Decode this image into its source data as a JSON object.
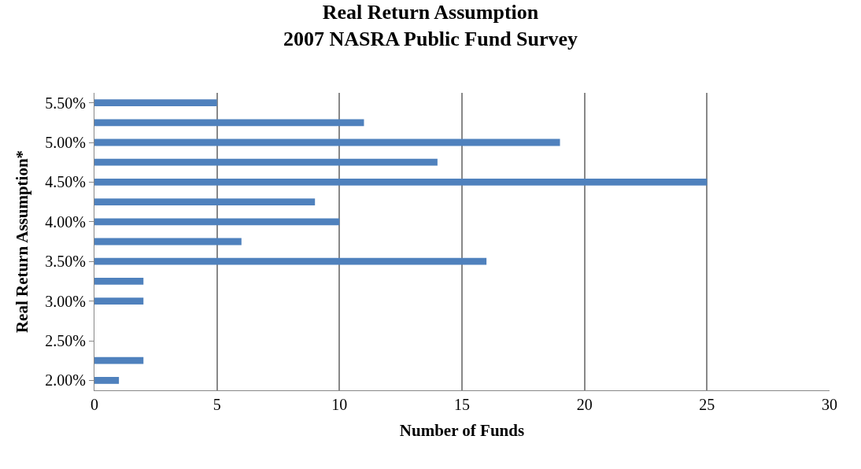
{
  "chart_data": {
    "type": "bar",
    "orientation": "horizontal",
    "title": "Real Return Assumption\n2007 NASRA Public Fund Survey",
    "xlabel": "Number of Funds",
    "ylabel": "Real Return Assumption*",
    "categories": [
      "5.50%",
      null,
      "5.00%",
      null,
      "4.50%",
      null,
      "4.00%",
      null,
      "3.50%",
      null,
      "3.00%",
      null,
      "2.50%",
      null,
      "2.00%"
    ],
    "values": [
      5,
      11,
      19,
      14,
      25,
      9,
      10,
      6,
      16,
      2,
      2,
      null,
      null,
      2,
      1
    ],
    "color": "#4f81bd",
    "xlim": [
      0,
      30
    ],
    "xticks": [
      0,
      5,
      10,
      15,
      20,
      25,
      30
    ],
    "grid": "x"
  }
}
